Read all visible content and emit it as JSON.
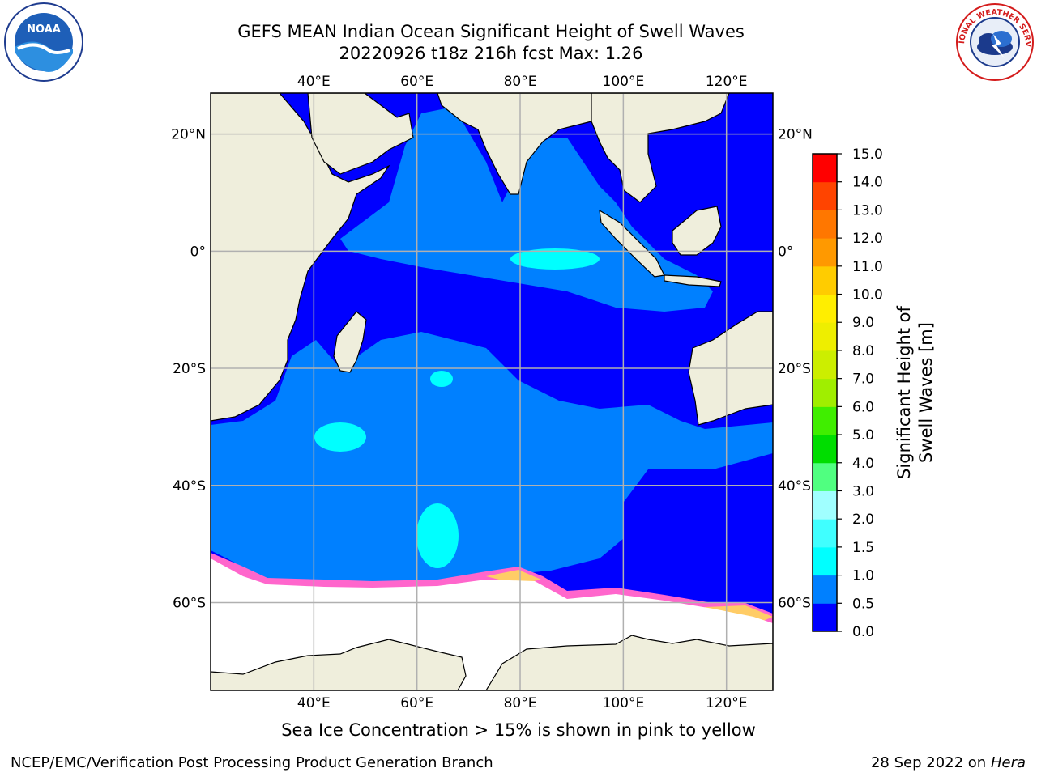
{
  "header": {
    "title_line1": "GEFS MEAN Indian Ocean Significant Height of Swell Waves",
    "title_line2": "20220926 t18z 216h fcst   Max: 1.26"
  },
  "map": {
    "lon_labels": [
      "40°E",
      "60°E",
      "80°E",
      "100°E",
      "120°E"
    ],
    "lat_labels": [
      "20°N",
      "0°",
      "20°S",
      "40°S",
      "60°S"
    ],
    "lon_values": [
      40,
      60,
      80,
      100,
      120
    ],
    "lat_values": [
      20,
      0,
      -20,
      -40,
      -60
    ],
    "extent": {
      "lon_min": 20,
      "lon_max": 129,
      "lat_min": -75,
      "lat_max": 27
    },
    "colors": {
      "land": "#efeedc",
      "ocean_dark": "#0000ff",
      "ocean_mid": "#0080ff",
      "ocean_light": "#00ffff",
      "ice": "#ffffff",
      "ice_edge": "#ff66cc",
      "grid": "#b0b0b0"
    }
  },
  "colorbar": {
    "label": "Significant Height of Swell Waves [m]",
    "tick_labels": [
      "0.0",
      "0.5",
      "1.0",
      "1.5",
      "2.0",
      "3.0",
      "4.0",
      "5.0",
      "6.0",
      "7.0",
      "8.0",
      "9.0",
      "10.0",
      "11.0",
      "12.0",
      "13.0",
      "14.0",
      "15.0"
    ],
    "colors": [
      "#0000ff",
      "#0080ff",
      "#00ffff",
      "#40ffff",
      "#a0ffff",
      "#50ff80",
      "#00dd00",
      "#40ee00",
      "#a0ee00",
      "#ccee00",
      "#eeee00",
      "#ffee00",
      "#ffcc00",
      "#ff9900",
      "#ff7700",
      "#ff4400",
      "#ff0000"
    ]
  },
  "caption": "Sea Ice Concentration > 15% is shown in pink to yellow",
  "footer": {
    "left": "NCEP/EMC/Verification Post Processing Product Generation Branch",
    "right_date": "28 Sep 2022 on",
    "right_host": "Hera"
  },
  "logos": {
    "left_text": "NOAA",
    "right_text": "NATIONAL WEATHER SERVICE"
  }
}
